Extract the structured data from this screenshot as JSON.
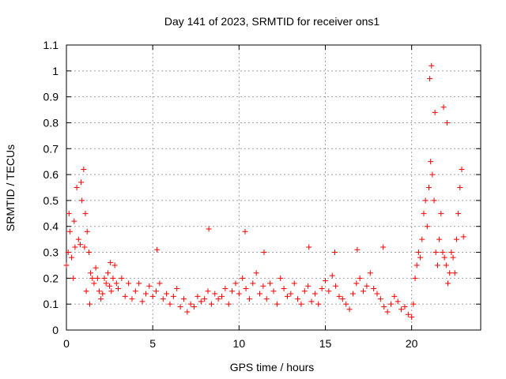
{
  "chart_data": {
    "type": "scatter",
    "title": "Day 141 of 2023, SRMTID for receiver ons1",
    "xlabel": "GPS time / hours",
    "ylabel": "SRMTID / TECUs",
    "xlim": [
      0,
      24
    ],
    "ylim": [
      0,
      1.1
    ],
    "x_ticks": [
      0,
      5,
      10,
      15,
      20
    ],
    "x_tick_labels": [
      "0",
      "5",
      "10",
      "15",
      "20"
    ],
    "y_ticks": [
      0,
      0.1,
      0.2,
      0.3,
      0.4,
      0.5,
      0.6,
      0.7,
      0.8,
      0.9,
      1,
      1.1
    ],
    "y_tick_labels": [
      "0",
      "0.1",
      "0.2",
      "0.3",
      "0.4",
      "0.5",
      "0.6",
      "0.7",
      "0.8",
      "0.9",
      "1",
      "1.1"
    ],
    "grid": true,
    "marker": "+",
    "marker_color": "#ff0000",
    "series": [
      {
        "name": "SRMTID",
        "x": [
          0.0,
          0.1,
          0.2,
          0.3,
          0.4,
          0.5,
          0.6,
          0.7,
          0.8,
          0.9,
          1.0,
          1.1,
          1.2,
          1.3,
          1.4,
          1.5,
          1.6,
          1.7,
          1.8,
          1.9,
          2.0,
          2.1,
          2.2,
          2.3,
          2.4,
          2.5,
          2.6,
          2.7,
          2.8,
          2.9,
          3.0,
          3.2,
          3.4,
          3.6,
          3.8,
          4.0,
          4.2,
          4.4,
          4.6,
          4.8,
          5.0,
          5.2,
          5.4,
          5.6,
          5.8,
          6.0,
          6.2,
          6.4,
          6.6,
          6.8,
          7.0,
          7.2,
          7.4,
          7.6,
          7.8,
          8.0,
          8.2,
          8.4,
          8.6,
          8.8,
          9.0,
          9.2,
          9.4,
          9.6,
          9.8,
          10.0,
          10.2,
          10.4,
          10.6,
          10.8,
          11.0,
          11.2,
          11.4,
          11.6,
          11.8,
          12.0,
          12.2,
          12.4,
          12.6,
          12.8,
          13.0,
          13.2,
          13.4,
          13.6,
          13.8,
          14.0,
          14.2,
          14.4,
          14.6,
          14.8,
          15.0,
          15.2,
          15.4,
          15.6,
          15.8,
          16.0,
          16.2,
          16.4,
          16.6,
          16.8,
          17.0,
          17.2,
          17.4,
          17.6,
          17.8,
          18.0,
          18.2,
          18.4,
          18.6,
          18.8,
          19.0,
          19.2,
          19.4,
          19.6,
          19.8,
          20.0,
          20.1,
          20.2,
          20.3,
          20.4,
          20.5,
          20.6,
          20.7,
          20.8,
          20.9,
          21.0,
          21.1,
          21.2,
          21.3,
          21.4,
          21.5,
          21.6,
          21.7,
          21.8,
          21.9,
          22.0,
          22.1,
          22.2,
          22.3,
          22.4,
          22.5,
          22.6,
          22.7,
          22.8,
          22.9,
          23.0,
          0.15,
          0.45,
          0.85,
          1.05,
          1.15,
          1.35,
          2.55,
          5.25,
          8.25,
          10.35,
          11.45,
          14.05,
          15.55,
          16.85,
          18.35,
          21.05,
          21.15,
          21.35,
          21.85,
          22.05
        ],
        "y": [
          0.25,
          0.3,
          0.38,
          0.28,
          0.2,
          0.32,
          0.55,
          0.35,
          0.33,
          0.5,
          0.62,
          0.45,
          0.38,
          0.3,
          0.22,
          0.2,
          0.18,
          0.24,
          0.2,
          0.15,
          0.12,
          0.14,
          0.2,
          0.18,
          0.22,
          0.17,
          0.15,
          0.2,
          0.25,
          0.18,
          0.16,
          0.2,
          0.13,
          0.18,
          0.12,
          0.15,
          0.18,
          0.11,
          0.14,
          0.17,
          0.13,
          0.15,
          0.18,
          0.12,
          0.14,
          0.1,
          0.13,
          0.16,
          0.09,
          0.12,
          0.07,
          0.1,
          0.09,
          0.13,
          0.11,
          0.12,
          0.15,
          0.1,
          0.14,
          0.12,
          0.13,
          0.16,
          0.1,
          0.15,
          0.18,
          0.14,
          0.2,
          0.16,
          0.12,
          0.18,
          0.22,
          0.14,
          0.17,
          0.12,
          0.18,
          0.15,
          0.1,
          0.2,
          0.16,
          0.13,
          0.14,
          0.18,
          0.12,
          0.1,
          0.15,
          0.17,
          0.11,
          0.14,
          0.1,
          0.16,
          0.19,
          0.15,
          0.21,
          0.17,
          0.13,
          0.12,
          0.1,
          0.08,
          0.14,
          0.18,
          0.2,
          0.15,
          0.17,
          0.22,
          0.16,
          0.14,
          0.12,
          0.09,
          0.07,
          0.1,
          0.13,
          0.11,
          0.08,
          0.09,
          0.06,
          0.05,
          0.1,
          0.2,
          0.25,
          0.3,
          0.28,
          0.35,
          0.45,
          0.5,
          0.4,
          0.55,
          0.65,
          0.6,
          0.5,
          0.3,
          0.25,
          0.35,
          0.45,
          0.3,
          0.28,
          0.25,
          0.18,
          0.22,
          0.3,
          0.28,
          0.22,
          0.35,
          0.45,
          0.55,
          0.62,
          0.36,
          0.45,
          0.42,
          0.57,
          0.32,
          0.15,
          0.1,
          0.26,
          0.31,
          0.39,
          0.38,
          0.3,
          0.32,
          0.3,
          0.31,
          0.32,
          0.97,
          1.02,
          0.84,
          0.86,
          0.8
        ]
      }
    ]
  }
}
